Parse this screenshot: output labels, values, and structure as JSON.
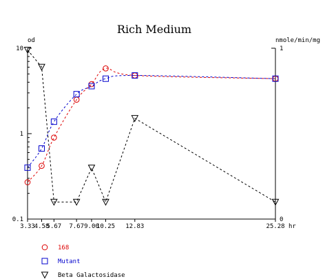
{
  "chart_data": {
    "type": "line",
    "title": "Rich Medium",
    "xlabel": "hr",
    "ylabel_left": "od",
    "ylabel_right": "nmole/min/mg",
    "x_ticks": [
      "3.33",
      "4.58",
      "5.67",
      "7.67",
      "9.00",
      "10.25",
      "12.83",
      "25.28"
    ],
    "x_tick_values": [
      3.33,
      4.58,
      5.67,
      7.67,
      9.0,
      10.25,
      12.83,
      25.28
    ],
    "xlim": [
      3.33,
      25.28
    ],
    "y_left_scale": "log",
    "y_left_ticks": [
      "0.1",
      "1",
      "10"
    ],
    "y_left_lim": [
      0.1,
      10
    ],
    "y_right_ticks": [
      "0",
      "1"
    ],
    "y_right_lim": [
      0,
      1
    ],
    "grid": false,
    "legend_position": "bottom-left",
    "series": [
      {
        "name": "168",
        "axis": "left",
        "marker": "circle",
        "color": "#dd0000",
        "x": [
          3.33,
          4.58,
          5.67,
          7.67,
          9.0,
          10.25,
          12.83,
          25.28
        ],
        "y": [
          0.27,
          0.42,
          0.9,
          2.5,
          3.8,
          5.8,
          4.8,
          4.4
        ]
      },
      {
        "name": "Mutant",
        "axis": "left",
        "marker": "square",
        "color": "#0000cc",
        "x": [
          3.33,
          4.58,
          5.67,
          7.67,
          9.0,
          10.25,
          12.83,
          25.28
        ],
        "y": [
          0.4,
          0.67,
          1.38,
          2.9,
          3.6,
          4.4,
          4.8,
          4.4
        ]
      },
      {
        "name": "Beta Galactosidase",
        "axis": "right",
        "marker": "triangle-down",
        "color": "#000000",
        "x": [
          3.33,
          4.58,
          5.67,
          7.67,
          9.0,
          10.25,
          12.83,
          25.28
        ],
        "y": [
          0.99,
          0.89,
          0.1,
          0.1,
          0.3,
          0.1,
          0.59,
          0.1
        ]
      }
    ]
  }
}
